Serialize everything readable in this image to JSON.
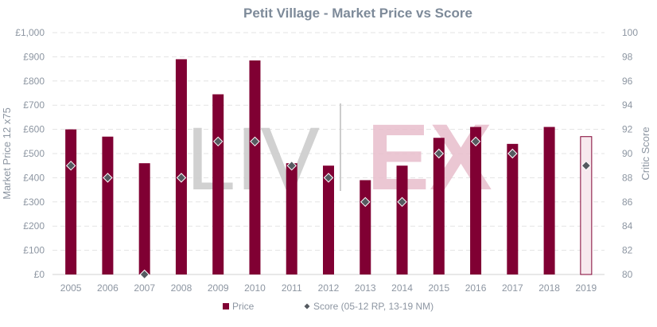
{
  "chart_data": {
    "type": "bar",
    "title": "Petit Village - Market Price vs Score",
    "watermark": "LIV|EX",
    "categories": [
      "2005",
      "2006",
      "2007",
      "2008",
      "2009",
      "2010",
      "2011",
      "2012",
      "2013",
      "2014",
      "2015",
      "2016",
      "2017",
      "2018",
      "2019"
    ],
    "series": [
      {
        "name": "Price",
        "axis": "left",
        "type": "bar",
        "values": [
          600,
          570,
          460,
          890,
          745,
          885,
          460,
          450,
          390,
          450,
          565,
          610,
          540,
          610,
          570
        ],
        "highlighted_last": true
      },
      {
        "name": "Score (05-12 RP, 13-19 NM)",
        "axis": "right",
        "type": "scatter",
        "marker": "diamond",
        "values": [
          89,
          88,
          80,
          88,
          91,
          91,
          89,
          88,
          86,
          86,
          90,
          91,
          90,
          null,
          89
        ]
      }
    ],
    "ylabel": "Market Price 12 x75",
    "y2label": "Critic Score",
    "ylim": [
      0,
      1000
    ],
    "y2lim": [
      80,
      100
    ],
    "yticks": [
      "£0",
      "£100",
      "£200",
      "£300",
      "£400",
      "£500",
      "£600",
      "£700",
      "£800",
      "£900",
      "£1,000"
    ],
    "y2ticks": [
      "80",
      "82",
      "84",
      "86",
      "88",
      "90",
      "92",
      "94",
      "96",
      "98",
      "100"
    ],
    "grid": true,
    "legend": "bottom",
    "colors": {
      "bar": "#800033",
      "bar_highlight_fill": "#f7e9ee",
      "marker": "#555a60",
      "marker_stroke": "#ffffff",
      "title": "#7d8a99",
      "axis_text": "#8d96a2",
      "grid": "#e3e3e3",
      "watermark_grey": "#cccccc",
      "watermark_pink": "#e7bdcb"
    }
  }
}
